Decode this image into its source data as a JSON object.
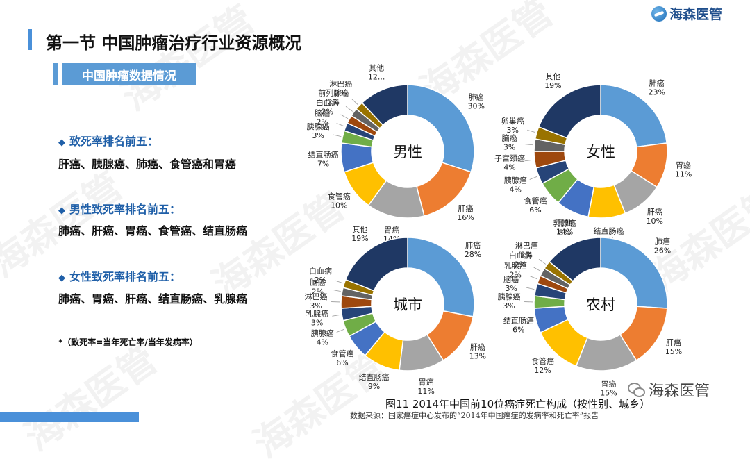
{
  "brand": {
    "name": "海森医管"
  },
  "page_title": "第一节 中国肿瘤治疗行业资源概况",
  "subtitle": "中国肿瘤数据情况",
  "sections": [
    {
      "heading": "致死率排名前五：",
      "body": "肝癌、胰腺癌、肺癌、食管癌和胃癌"
    },
    {
      "heading": "男性致死率排名前五：",
      "body": "肺癌、肝癌、胃癌、食管癌、结直肠癌"
    },
    {
      "heading": "女性致死率排名前五：",
      "body": "肺癌、胃癌、肝癌、结直肠癌、乳腺癌"
    }
  ],
  "note": "*（致死率=当年死亡率/当年发病率）",
  "caption": "图11 2014年中国前10位癌症死亡构成（按性别、城乡）",
  "source": "数据来源：国家癌症中心发布的“2014年中国癌症的发病率和死亡率”报告",
  "wechat_label": "海森医管",
  "watermark": "海森医管",
  "colors": {
    "accent": "#4a90d9",
    "slices": [
      "#5b9bd5",
      "#ed7d31",
      "#a5a5a5",
      "#ffc000",
      "#4472c4",
      "#70ad47",
      "#264478",
      "#9e480e",
      "#636363",
      "#997300",
      "#1f3864"
    ]
  },
  "chart_data": [
    {
      "type": "pie",
      "title": "男性",
      "categories": [
        "肺癌",
        "肝癌",
        "胃癌",
        "食管癌",
        "结直肠癌",
        "胰腺癌",
        "脑癌",
        "白血病",
        "前列腺癌",
        "淋巴癌",
        "其他"
      ],
      "values": [
        30,
        16,
        14,
        10,
        7,
        3,
        2,
        2,
        2,
        2,
        12
      ],
      "labels": [
        "肺癌\n30%",
        "肝癌\n16%",
        "胃癌\n14%",
        "食管癌\n10%",
        "结直肠癌\n7%",
        "胰腺癌\n3%",
        "脑癌\n2%",
        "白血病\n2%",
        "前列腺癌\n2%",
        "淋巴癌\n2%",
        "其他\n12..."
      ]
    },
    {
      "type": "pie",
      "title": "女性",
      "categories": [
        "肺癌",
        "胃癌",
        "肝癌",
        "结直肠癌",
        "乳腺癌",
        "食管癌",
        "胰腺癌",
        "子宫颈癌",
        "脑癌",
        "卵巢癌",
        "其他"
      ],
      "values": [
        23,
        11,
        10,
        9,
        8,
        6,
        4,
        4,
        3,
        3,
        19
      ],
      "labels": [
        "肺癌\n23%",
        "胃癌\n11%",
        "肝癌\n10%",
        "结直肠癌\n9%",
        "乳腺癌\n8%",
        "食管癌\n6%",
        "胰腺癌\n4%",
        "子宫颈癌\n4%",
        "脑癌\n3%",
        "卵巢癌\n3%",
        "其他\n19%"
      ]
    },
    {
      "type": "pie",
      "title": "城市",
      "categories": [
        "肺癌",
        "肝癌",
        "胃癌",
        "结直肠癌",
        "食管癌",
        "胰腺癌",
        "乳腺癌",
        "淋巴癌",
        "脑癌",
        "白血病",
        "其他"
      ],
      "values": [
        28,
        13,
        11,
        9,
        6,
        4,
        3,
        3,
        2,
        2,
        19
      ],
      "labels": [
        "肺癌\n28%",
        "肝癌\n13%",
        "胃癌\n11%",
        "结直肠癌\n9%",
        "食管癌\n6%",
        "胰腺癌\n4%",
        "乳腺癌\n3%",
        "淋巴癌\n3%",
        "脑癌\n2%",
        "白血病\n2%",
        "其他\n19%"
      ]
    },
    {
      "type": "pie",
      "title": "农村",
      "categories": [
        "肺癌",
        "肝癌",
        "胃癌",
        "食管癌",
        "结直肠癌",
        "胰腺癌",
        "脑癌",
        "乳腺癌",
        "白血病",
        "淋巴癌",
        "其他"
      ],
      "values": [
        26,
        15,
        15,
        12,
        6,
        3,
        3,
        2,
        2,
        2,
        14
      ],
      "labels": [
        "肺癌\n26%",
        "肝癌\n15%",
        "胃癌\n15%",
        "食管癌\n12%",
        "结直肠癌\n6%",
        "胰腺癌\n3%",
        "脑癌\n3%",
        "乳腺癌\n2%",
        "白血病\n2%",
        "淋巴癌\n2%",
        "其他\n14%"
      ]
    }
  ]
}
